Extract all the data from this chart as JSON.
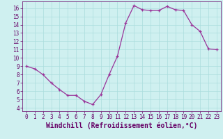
{
  "x": [
    0,
    1,
    2,
    3,
    4,
    5,
    6,
    7,
    8,
    9,
    10,
    11,
    12,
    13,
    14,
    15,
    16,
    17,
    18,
    19,
    20,
    21,
    22,
    23
  ],
  "y": [
    9.0,
    8.7,
    8.0,
    7.0,
    6.2,
    5.5,
    5.5,
    4.8,
    4.4,
    5.6,
    8.0,
    10.2,
    14.2,
    16.3,
    15.8,
    15.7,
    15.7,
    16.2,
    15.8,
    15.7,
    14.0,
    13.2,
    11.1,
    11.0
  ],
  "xlabel": "Windchill (Refroidissement éolien,°C)",
  "line_color": "#993399",
  "marker": "+",
  "bg_color": "#cff0f0",
  "grid_color": "#aadddd",
  "text_color": "#660066",
  "ylim": [
    3.6,
    16.8
  ],
  "xlim": [
    -0.5,
    23.5
  ],
  "yticks": [
    4,
    5,
    6,
    7,
    8,
    9,
    10,
    11,
    12,
    13,
    14,
    15,
    16
  ],
  "xticks": [
    0,
    1,
    2,
    3,
    4,
    5,
    6,
    7,
    8,
    9,
    10,
    11,
    12,
    13,
    14,
    15,
    16,
    17,
    18,
    19,
    20,
    21,
    22,
    23
  ],
  "tick_fontsize": 5.5,
  "xlabel_fontsize": 7.0,
  "linewidth": 0.9,
  "markersize": 3.5
}
